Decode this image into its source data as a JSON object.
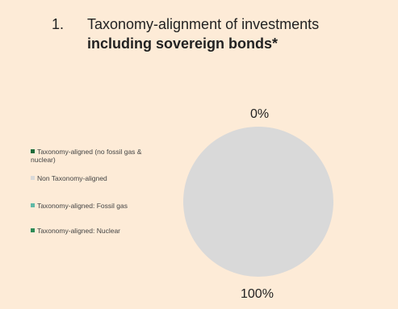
{
  "heading": {
    "number": "1.",
    "line1": "Taxonomy-alignment of investments",
    "line2": "including sovereign bonds*"
  },
  "chart_data": {
    "type": "pie",
    "title": "Taxonomy-alignment of investments including sovereign bonds*",
    "slices": [
      {
        "name": "Taxonomy-aligned (no fossil gas & nuclear)",
        "value": 0,
        "color": "#1e6b3a"
      },
      {
        "name": "Non Taxonomy-aligned",
        "value": 100,
        "color": "#d9d9d9"
      },
      {
        "name": "Taxonomy-aligned: Fossil gas",
        "value": 0,
        "color": "#5fb9a6"
      },
      {
        "name": "Taxonomy-aligned: Nuclear",
        "value": 0,
        "color": "#2e8b57"
      }
    ],
    "data_labels": [
      "0%",
      "100%"
    ],
    "legend_position": "left"
  }
}
